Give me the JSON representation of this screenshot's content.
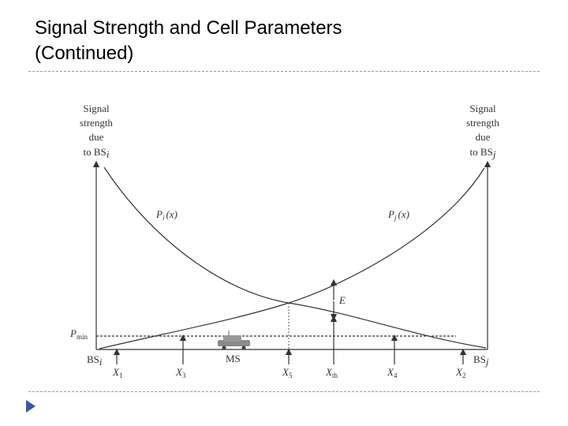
{
  "slide": {
    "title_line1": "Signal Strength and Cell Parameters",
    "title_line2": "(Continued)"
  },
  "diagram": {
    "left_axis_label": [
      "Signal",
      "strength",
      "due",
      "to BS",
      "i"
    ],
    "right_axis_label": [
      "Signal",
      "strength",
      "due",
      "to BS",
      "j"
    ],
    "curve_i_label": {
      "main": "P",
      "sub": "i",
      "arg": "(x)"
    },
    "curve_j_label": {
      "main": "P",
      "sub": "j",
      "arg": "(x)"
    },
    "pmin_label": {
      "main": "P",
      "sub": "min"
    },
    "e_label": "E",
    "bs_left": {
      "main": "BS",
      "sub": "i"
    },
    "bs_right": {
      "main": "BS",
      "sub": "j"
    },
    "ms_label": "MS",
    "x_markers": [
      {
        "main": "X",
        "sub": "1"
      },
      {
        "main": "X",
        "sub": "3"
      },
      {
        "main": "X",
        "sub": "5"
      },
      {
        "main": "X",
        "sub": "th"
      },
      {
        "main": "X",
        "sub": "4"
      },
      {
        "main": "X",
        "sub": "2"
      }
    ],
    "colors": {
      "line": "#333333",
      "vehicle": "#8a8a8a"
    }
  }
}
